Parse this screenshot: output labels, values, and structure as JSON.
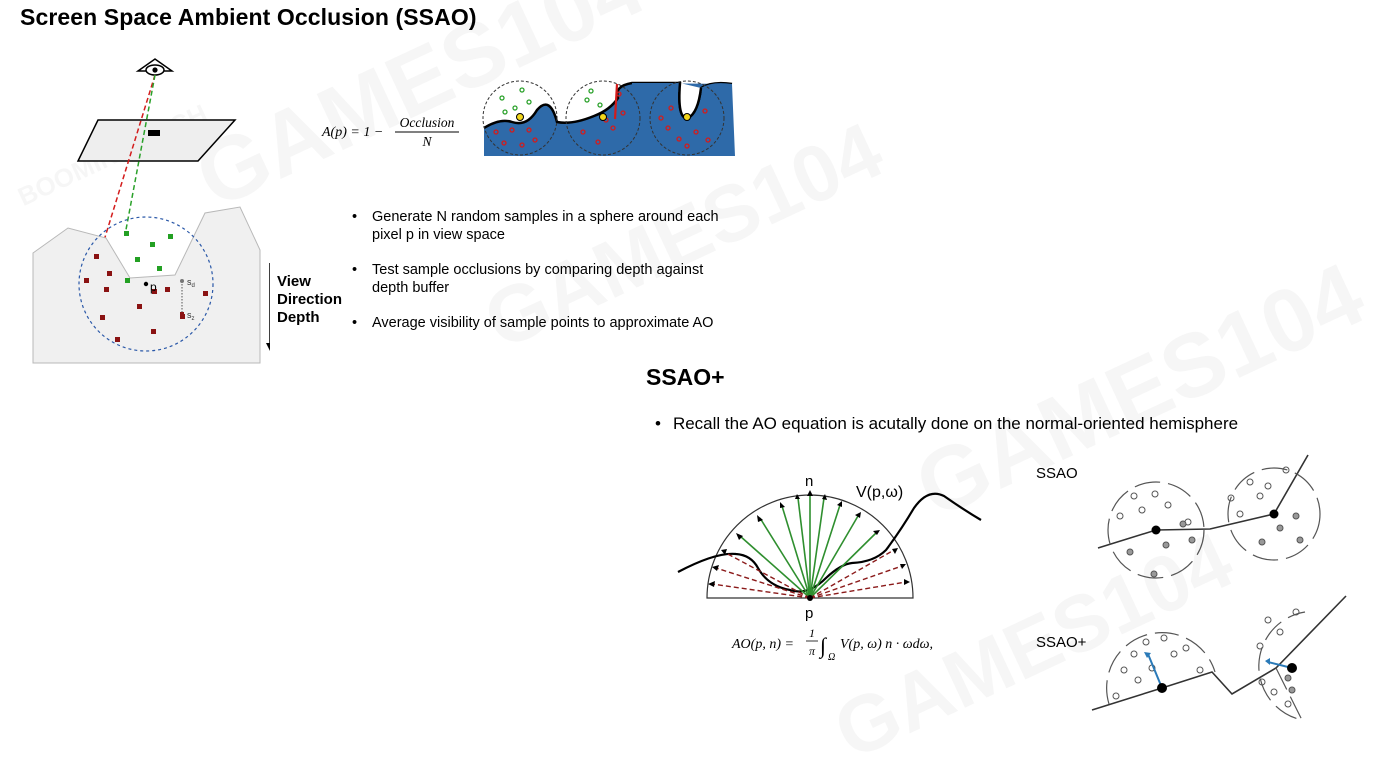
{
  "title": "Screen Space Ambient Occlusion (SSAO)",
  "formula": {
    "lhs": "A(p) = 1 −",
    "numerator": "Occlusion",
    "denominator": "N"
  },
  "bullets": [
    "Generate N random samples in a sphere around each pixel p in view space",
    "Test sample occlusions by comparing depth against depth buffer",
    "Average visibility of sample points to approximate AO"
  ],
  "view_direction_label": "View Direction Depth",
  "view_direction_lines": [
    "View",
    "Direction",
    "Depth"
  ],
  "scene_labels": {
    "point": "p",
    "sd": "s",
    "sd_sub": "d",
    "sz": "s",
    "sz_sub": "z"
  },
  "section2": {
    "title": "SSAO+",
    "recall_bullet": "Recall the AO equation is acutally done on the normal-oriented hemisphere",
    "bullet_symbol": "•"
  },
  "hemisphere": {
    "normal_label": "n",
    "visibility_label": "V(p,ω)",
    "point_label": "p",
    "equation": "AO(p, n) = 1/π ∫Ω V(p, ω) n · ω dω,",
    "eq_lhs": "AO(p, n) =",
    "eq_frac_num": "1",
    "eq_frac_den": "π",
    "eq_integral": "∫",
    "eq_domain": "Ω",
    "eq_body": "V(p, ω) n · ωdω,"
  },
  "compare": {
    "ssao_label": "SSAO",
    "ssao_plus_label": "SSAO+"
  },
  "watermark": {
    "texts": [
      "GAMES104",
      "BOOMING TECH"
    ]
  },
  "colors": {
    "occluder_blue": "#2e6aa9",
    "sample_red": "#c41d1d",
    "sample_green": "#2aa12a",
    "sample_yellow": "#f2d61c",
    "dark_red_square": "#8a1212",
    "green_arrow": "#2f8f2f",
    "dashed_red_arrow": "#8b1a1a",
    "normal_arrow": "#2a7ab8"
  }
}
